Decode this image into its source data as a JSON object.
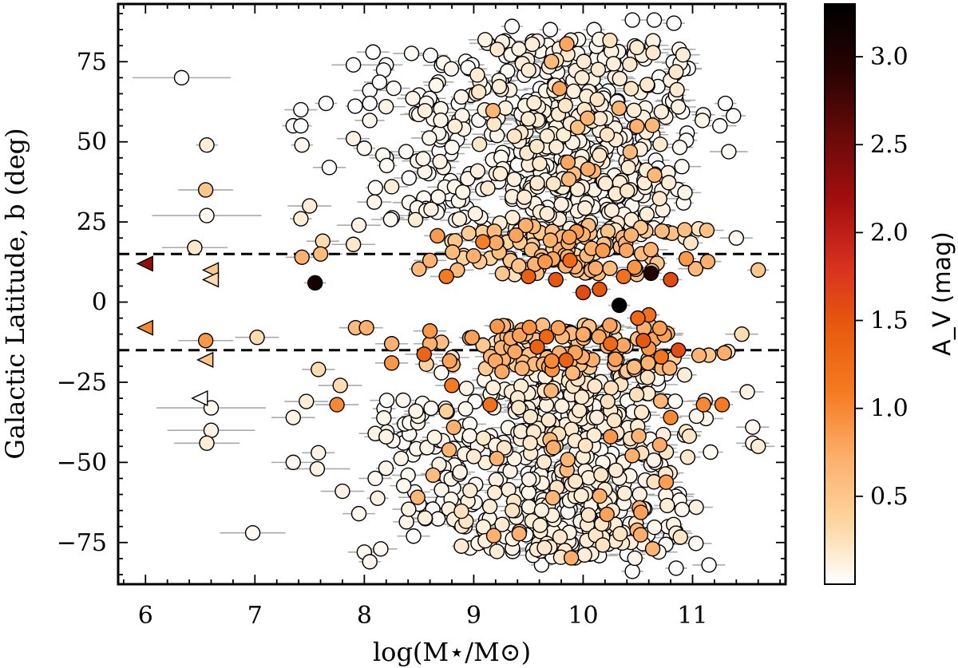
{
  "chart_data": {
    "type": "scatter",
    "xlabel": "log(M⋆/M⊙)",
    "ylabel": "Galactic Latitude, b (deg)",
    "colorbar_label": "A_V (mag)",
    "xlim": [
      5.75,
      11.85
    ],
    "ylim": [
      -88,
      93
    ],
    "xticks": [
      6,
      7,
      8,
      9,
      10,
      11
    ],
    "xtick_labels": [
      "6",
      "7",
      "8",
      "9",
      "10",
      "11"
    ],
    "yticks": [
      -75,
      -50,
      -25,
      0,
      25,
      50,
      75
    ],
    "ytick_labels": [
      "−75",
      "−50",
      "−25",
      "0",
      "25",
      "50",
      "75"
    ],
    "color_range": [
      0,
      3.3
    ],
    "colorbar_ticks": [
      0.5,
      1.0,
      1.5,
      2.0,
      2.5,
      3.0
    ],
    "colorbar_tick_labels": [
      "0.5",
      "1.0",
      "1.5",
      "2.0",
      "2.5",
      "3.0"
    ],
    "colormap": [
      "#ffffff",
      "#fdd49e",
      "#fdae6b",
      "#f57b20",
      "#e85b0e",
      "#d7301f",
      "#a30f0f",
      "#6b0a0a",
      "#2b0303",
      "#000000"
    ],
    "reference_lines": [
      15,
      -15
    ],
    "grid": false,
    "points": [
      {
        "x": 6.33,
        "y": 70,
        "c": 0.0,
        "err": 0.45
      },
      {
        "x": 6.56,
        "y": 49,
        "c": 0.15,
        "err": 0.1
      },
      {
        "x": 6.55,
        "y": 35,
        "c": 0.5,
        "err": 0.25
      },
      {
        "x": 6.56,
        "y": 27,
        "c": 0.05,
        "err": 0.5
      },
      {
        "x": 6.45,
        "y": 17,
        "c": 0.2,
        "err": 0.3
      },
      {
        "x": 6.55,
        "y": -12,
        "c": 0.9,
        "err": 0.25
      },
      {
        "x": 6.6,
        "y": -33,
        "c": 0.05,
        "err": 0.5
      },
      {
        "x": 6.6,
        "y": -40,
        "c": 0.1,
        "err": 0.4
      },
      {
        "x": 6.56,
        "y": -44,
        "c": 0.15,
        "err": 0.3
      },
      {
        "x": 6.98,
        "y": -72,
        "c": 0.05,
        "err": 0.3
      },
      {
        "x": 7.02,
        "y": -11,
        "c": 0.3,
        "err": 0.2
      },
      {
        "x": 7.55,
        "y": 6,
        "c": 3.1,
        "err": 0.1
      },
      {
        "x": 7.35,
        "y": 55,
        "c": 0.0,
        "err": 0.1
      },
      {
        "x": 7.42,
        "y": 60,
        "c": 0.0,
        "err": 0.15
      },
      {
        "x": 7.42,
        "y": 55,
        "c": 0.0,
        "err": 0.1
      },
      {
        "x": 7.43,
        "y": 49,
        "c": 0.05,
        "err": 0.1
      },
      {
        "x": 7.5,
        "y": 30,
        "c": 0.15,
        "err": 0.2
      },
      {
        "x": 7.42,
        "y": 26,
        "c": 0.15,
        "err": 0.1
      },
      {
        "x": 7.43,
        "y": 14,
        "c": 0.7,
        "err": 0.15
      },
      {
        "x": 7.6,
        "y": 15,
        "c": 0.6,
        "err": 0.2
      },
      {
        "x": 7.62,
        "y": 19,
        "c": 0.3,
        "err": 0.15
      },
      {
        "x": 7.68,
        "y": 42,
        "c": 0.0,
        "err": 0.15
      },
      {
        "x": 7.65,
        "y": 62,
        "c": 0.0,
        "err": 0.1
      },
      {
        "x": 7.58,
        "y": -21,
        "c": 0.3,
        "err": 0.15
      },
      {
        "x": 7.47,
        "y": -31,
        "c": 0.15,
        "err": 0.2
      },
      {
        "x": 7.35,
        "y": -36,
        "c": 0.1,
        "err": 0.2
      },
      {
        "x": 7.58,
        "y": -47,
        "c": 0.1,
        "err": 0.15
      },
      {
        "x": 7.57,
        "y": -52,
        "c": 0.1,
        "err": 0.3
      },
      {
        "x": 7.35,
        "y": -50,
        "c": 0.05,
        "err": 0.2
      },
      {
        "x": 7.75,
        "y": -32,
        "c": 1.0,
        "err": 0.2
      },
      {
        "x": 7.78,
        "y": -26,
        "c": 0.3,
        "err": 0.2
      },
      {
        "x": 7.8,
        "y": -59,
        "c": 0.1,
        "err": 0.2
      },
      {
        "x": 7.95,
        "y": -66,
        "c": 0.05,
        "err": 0.15
      },
      {
        "x": 8.0,
        "y": -78,
        "c": 0.05,
        "err": 0.15
      },
      {
        "x": 8.05,
        "y": -81,
        "c": 0.05,
        "err": 0.1
      },
      {
        "x": 8.15,
        "y": -77,
        "c": 0.05,
        "err": 0.15
      },
      {
        "x": 7.92,
        "y": -8,
        "c": 0.6,
        "err": 0.15
      },
      {
        "x": 8.02,
        "y": -8,
        "c": 0.7,
        "err": 0.15
      },
      {
        "x": 7.9,
        "y": 18,
        "c": 0.2,
        "err": 0.2
      },
      {
        "x": 7.95,
        "y": 24,
        "c": 0.1,
        "err": 0.2
      },
      {
        "x": 7.9,
        "y": 51,
        "c": 0.1,
        "err": 0.15
      },
      {
        "x": 8.0,
        "y": 48,
        "c": 0.05,
        "err": 0.1
      },
      {
        "x": 7.9,
        "y": 74,
        "c": 0.0,
        "err": 0.2
      },
      {
        "x": 8.05,
        "y": 66,
        "c": 0.0,
        "err": 0.15
      },
      {
        "x": 8.05,
        "y": 62,
        "c": 0.0,
        "err": 0.15
      },
      {
        "x": 8.08,
        "y": 78,
        "c": 0.0,
        "err": 0.15
      },
      {
        "x": 8.2,
        "y": 74,
        "c": 0.0,
        "err": 0.15
      },
      {
        "x": 8.25,
        "y": 36,
        "c": 0.15,
        "err": 0.15
      },
      {
        "x": 8.2,
        "y": 45,
        "c": 0.0,
        "err": 0.15
      },
      {
        "x": 8.25,
        "y": -13,
        "c": 0.7,
        "err": 0.15
      },
      {
        "x": 8.25,
        "y": -19,
        "c": 0.9,
        "err": 0.15
      },
      {
        "x": 8.1,
        "y": -41,
        "c": 0.1,
        "err": 0.15
      },
      {
        "x": 8.2,
        "y": -42,
        "c": 0.1,
        "err": 0.2
      },
      {
        "x": 8.1,
        "y": -55,
        "c": 0.05,
        "err": 0.15
      },
      {
        "x": 8.4,
        "y": -54,
        "c": 0.05,
        "err": 0.15
      },
      {
        "x": 8.5,
        "y": -63,
        "c": 0.05,
        "err": 0.15
      },
      {
        "x": 8.45,
        "y": -73,
        "c": 0.0,
        "err": 0.15
      },
      {
        "x": 8.6,
        "y": 13,
        "c": 0.7,
        "err": 0.15
      },
      {
        "x": 8.75,
        "y": 8,
        "c": 1.1,
        "err": 0.15
      },
      {
        "x": 8.85,
        "y": 10,
        "c": 0.6,
        "err": 0.15
      },
      {
        "x": 8.6,
        "y": -9,
        "c": 0.9,
        "err": 0.15
      },
      {
        "x": 8.6,
        "y": -13,
        "c": 0.7,
        "err": 0.15
      },
      {
        "x": 8.8,
        "y": -26,
        "c": 1.1,
        "err": 0.15
      },
      {
        "x": 8.75,
        "y": -34,
        "c": 0.4,
        "err": 0.15
      },
      {
        "x": 9.15,
        "y": -32,
        "c": 1.2,
        "err": 0.15
      },
      {
        "x": 9.5,
        "y": 8,
        "c": 1.4,
        "err": 0.1
      },
      {
        "x": 9.75,
        "y": 7,
        "c": 1.5,
        "err": 0.1
      },
      {
        "x": 9.88,
        "y": 13,
        "c": 1.3,
        "err": 0.1
      },
      {
        "x": 10.0,
        "y": 3,
        "c": 1.6,
        "err": 0.1
      },
      {
        "x": 10.15,
        "y": 4,
        "c": 1.5,
        "err": 0.1
      },
      {
        "x": 10.33,
        "y": -1,
        "c": 3.3,
        "err": 0.1
      },
      {
        "x": 10.37,
        "y": 8,
        "c": 1.2,
        "err": 0.1
      },
      {
        "x": 10.5,
        "y": -5,
        "c": 1.3,
        "err": 0.1
      },
      {
        "x": 10.62,
        "y": 9,
        "c": 3.0,
        "err": 0.1
      },
      {
        "x": 10.6,
        "y": -4,
        "c": 1.2,
        "err": 0.1
      },
      {
        "x": 10.8,
        "y": 7,
        "c": 1.6,
        "err": 0.1
      },
      {
        "x": 10.87,
        "y": -15,
        "c": 1.6,
        "err": 0.1
      },
      {
        "x": 9.58,
        "y": -14,
        "c": 1.4,
        "err": 0.1
      },
      {
        "x": 10.25,
        "y": -13,
        "c": 1.3,
        "err": 0.1
      },
      {
        "x": 10.55,
        "y": -12,
        "c": 1.5,
        "err": 0.1
      },
      {
        "x": 11.1,
        "y": -32,
        "c": 1.0,
        "err": 0.1
      },
      {
        "x": 11.27,
        "y": -32,
        "c": 1.1,
        "err": 0.1
      },
      {
        "x": 10.25,
        "y": -42,
        "c": 0.9,
        "err": 0.1
      },
      {
        "x": 10.8,
        "y": -36,
        "c": 1.0,
        "err": 0.1
      },
      {
        "x": 11.6,
        "y": 10,
        "c": 0.5,
        "err": 0.1
      },
      {
        "x": 11.5,
        "y": -28,
        "c": 0.1,
        "err": 0.15
      },
      {
        "x": 11.55,
        "y": -39,
        "c": 0.05,
        "err": 0.15
      },
      {
        "x": 11.55,
        "y": -44,
        "c": 0.1,
        "err": 0.15
      },
      {
        "x": 11.6,
        "y": -45,
        "c": 0.15,
        "err": 0.15
      },
      {
        "x": 11.45,
        "y": -10,
        "c": 0.3,
        "err": 0.15
      },
      {
        "x": 11.4,
        "y": 20,
        "c": 0.05,
        "err": 0.15
      },
      {
        "x": 11.3,
        "y": 62,
        "c": 0.0,
        "err": 0.1
      },
      {
        "x": 11.15,
        "y": -82,
        "c": 0.0,
        "err": 0.15
      },
      {
        "x": 11.25,
        "y": 55,
        "c": 0.0,
        "err": 0.15
      },
      {
        "x": 10.45,
        "y": 88,
        "c": 0.0,
        "err": 0.1
      },
      {
        "x": 10.65,
        "y": 88,
        "c": 0.0,
        "err": 0.1
      },
      {
        "x": 10.83,
        "y": 87,
        "c": 0.0,
        "err": 0.1
      },
      {
        "x": 9.35,
        "y": 86,
        "c": 0.0,
        "err": 0.1
      },
      {
        "x": 9.7,
        "y": 85,
        "c": 0.0,
        "err": 0.1
      },
      {
        "x": 10.1,
        "y": 85,
        "c": 0.0,
        "err": 0.1
      },
      {
        "x": 10.45,
        "y": -84,
        "c": 0.0,
        "err": 0.1
      },
      {
        "x": 10.85,
        "y": -83,
        "c": 0.0,
        "err": 0.1
      },
      {
        "x": 9.62,
        "y": -82,
        "c": 0.0,
        "err": 0.1
      },
      {
        "x": 9.88,
        "y": -78,
        "c": 0.0,
        "err": 0.1
      }
    ],
    "upper_limits": [
      {
        "x": 6.0,
        "y": 12,
        "c": 2.3
      },
      {
        "x": 6.0,
        "y": -8,
        "c": 1.0
      },
      {
        "x": 6.6,
        "y": 10,
        "c": 0.5
      },
      {
        "x": 6.6,
        "y": 7,
        "c": 0.3
      },
      {
        "x": 6.55,
        "y": -18,
        "c": 0.5
      },
      {
        "x": 6.5,
        "y": -30,
        "c": 0.0
      }
    ],
    "clusters": [
      {
        "x_mean": 9.9,
        "x_sd": 0.55,
        "y_min": 20,
        "y_max": 82,
        "n": 480,
        "c_mean": 0.08,
        "c_sd": 0.09,
        "seed": 11
      },
      {
        "x_mean": 9.95,
        "x_sd": 0.5,
        "y_min": -80,
        "y_max": -22,
        "n": 480,
        "c_mean": 0.1,
        "c_sd": 0.1,
        "seed": 23
      },
      {
        "x_mean": 9.9,
        "x_sd": 0.6,
        "y_min": 8,
        "y_max": 24,
        "n": 110,
        "c_mean": 0.55,
        "c_sd": 0.25,
        "seed": 37
      },
      {
        "x_mean": 9.9,
        "x_sd": 0.6,
        "y_min": -22,
        "y_max": -7,
        "n": 120,
        "c_mean": 0.6,
        "c_sd": 0.3,
        "seed": 53
      },
      {
        "x_mean": 8.6,
        "x_sd": 0.3,
        "y_min": 25,
        "y_max": 78,
        "n": 70,
        "c_mean": 0.04,
        "c_sd": 0.05,
        "seed": 71
      },
      {
        "x_mean": 8.6,
        "x_sd": 0.3,
        "y_min": -72,
        "y_max": -30,
        "n": 70,
        "c_mean": 0.06,
        "c_sd": 0.06,
        "seed": 89
      }
    ]
  }
}
